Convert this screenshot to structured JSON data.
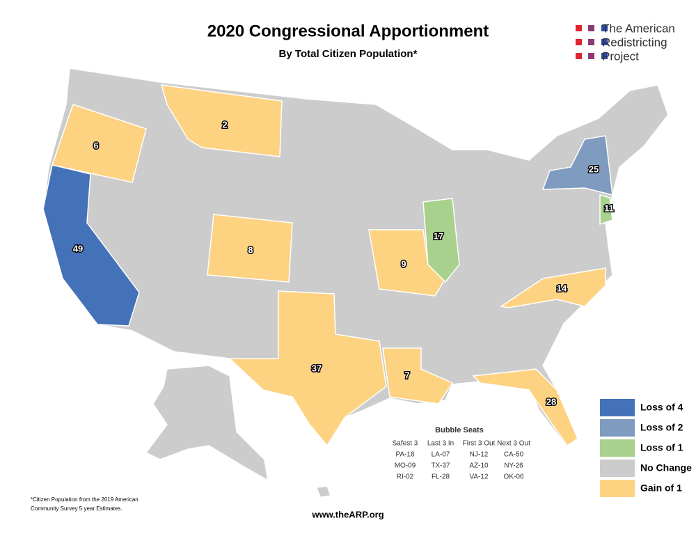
{
  "header": {
    "title": "2020 Congressional Apportionment",
    "subtitle": "By Total Citizen Population*"
  },
  "logo": {
    "lines": [
      "The American",
      "Redistricting",
      "Project"
    ]
  },
  "states": [
    {
      "label": "6",
      "color": "#fdd382"
    },
    {
      "label": "49",
      "color": "#4472b8"
    },
    {
      "label": "2",
      "color": "#fdd382"
    },
    {
      "label": "8",
      "color": "#fdd382"
    },
    {
      "label": "37",
      "color": "#fdd382"
    },
    {
      "label": "7",
      "color": "#fdd382"
    },
    {
      "label": "9",
      "color": "#fdd382"
    },
    {
      "label": "17",
      "color": "#a9d18e"
    },
    {
      "label": "25",
      "color": "#7f9bbf"
    },
    {
      "label": "11",
      "color": "#a9d18e"
    },
    {
      "label": "14",
      "color": "#fdd382"
    },
    {
      "label": "28",
      "color": "#fdd382"
    }
  ],
  "legend": [
    {
      "label": "Loss of 4",
      "color": "#4472b8"
    },
    {
      "label": "Loss of 2",
      "color": "#7f9bbf"
    },
    {
      "label": "Loss of 1",
      "color": "#a9d18e"
    },
    {
      "label": "No Change",
      "color": "#cccccc"
    },
    {
      "label": "Gain of 1",
      "color": "#fdd382"
    }
  ],
  "bubble_seats": {
    "title": "Bubble Seats",
    "columns": [
      {
        "header": "Safest 3",
        "rows": [
          "PA-18",
          "MO-09",
          "RI-02"
        ]
      },
      {
        "header": "Last 3 In",
        "rows": [
          "LA-07",
          "TX-37",
          "FL-28"
        ]
      },
      {
        "header": "First 3 Out",
        "rows": [
          "NJ-12",
          "AZ-10",
          "VA-12"
        ]
      },
      {
        "header": "Next 3 Out",
        "rows": [
          "CA-50",
          "NY-26",
          "OK-06"
        ]
      }
    ]
  },
  "footnote": [
    "*Citizen Population from the 2019 American",
    "Community Survey 5 year Estimates."
  ],
  "url": "www.theARP.org"
}
